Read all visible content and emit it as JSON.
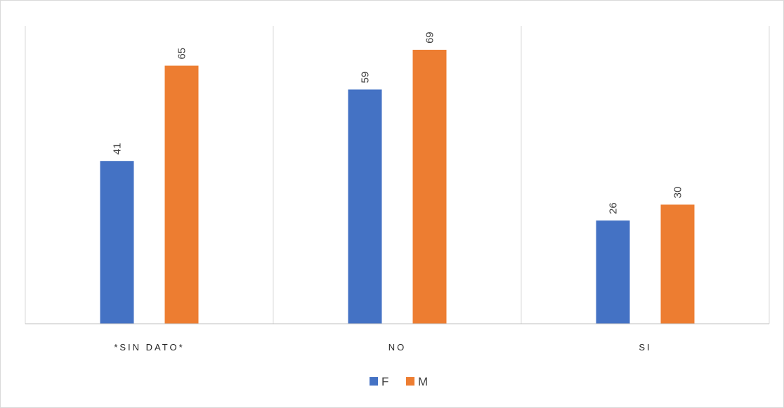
{
  "chart_data": {
    "type": "bar",
    "categories": [
      "*SIN DATO*",
      "NO",
      "SI"
    ],
    "series": [
      {
        "name": "F",
        "values": [
          41,
          59,
          26
        ],
        "color": "#4472C4"
      },
      {
        "name": "M",
        "values": [
          65,
          69,
          30
        ],
        "color": "#ED7D31"
      }
    ],
    "title": "",
    "xlabel": "",
    "ylabel": "",
    "ylim": [
      0,
      75
    ],
    "grid": false,
    "vertical_category_dividers": true,
    "data_labels": "rotated-vertical",
    "legend": {
      "position": "bottom",
      "entries": [
        "F",
        "M"
      ]
    },
    "colors": {
      "axis": "#bfbfbf",
      "divider": "#d9d9d9",
      "border": "#d9d9d9"
    }
  }
}
